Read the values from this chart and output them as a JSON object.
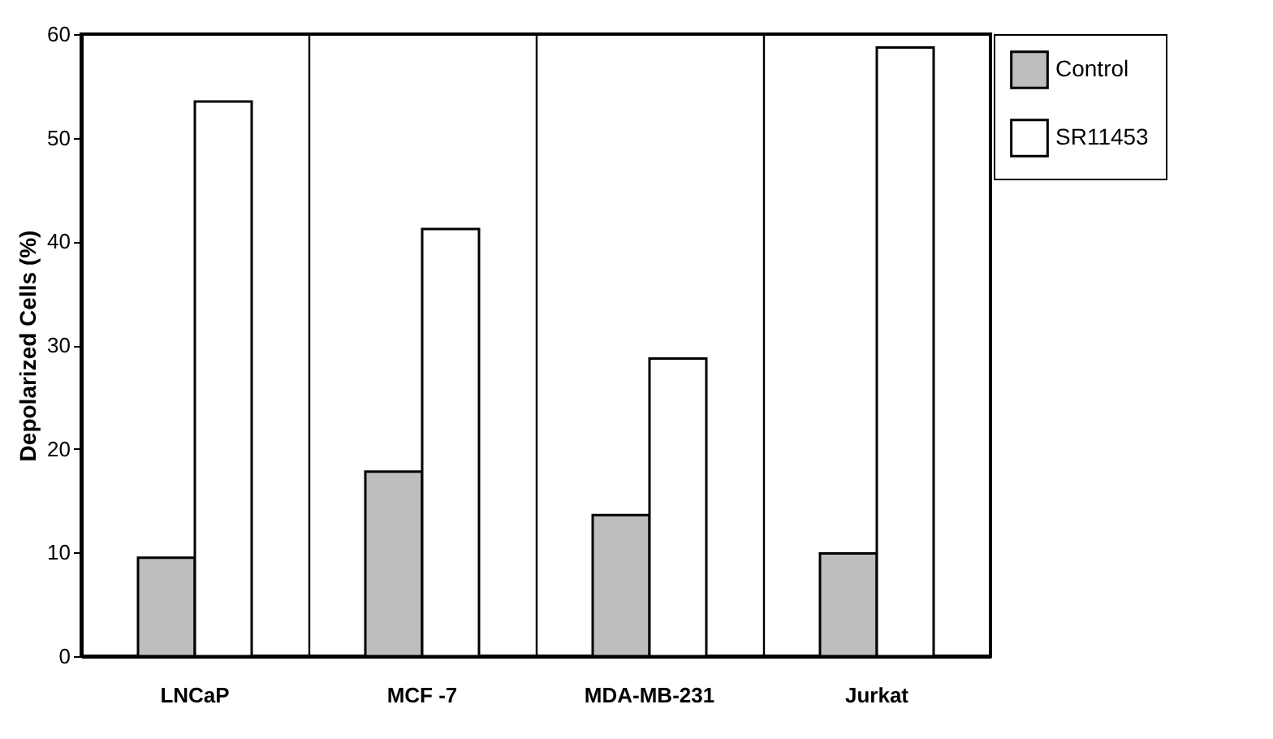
{
  "chart_data": {
    "type": "bar",
    "ylabel": "Depolarized Cells (%)",
    "categories": [
      "LNCaP",
      "MCF -7",
      "MDA-MB-231",
      "Jurkat"
    ],
    "series": [
      {
        "name": "Control",
        "color": "#bdbdbd",
        "values": [
          9.5,
          17.8,
          13.6,
          9.9
        ]
      },
      {
        "name": "SR11453",
        "color": "#ffffff",
        "values": [
          53.5,
          41.2,
          28.7,
          58.7
        ]
      }
    ],
    "ylim": [
      0,
      60
    ],
    "yticks": [
      0,
      10,
      20,
      30,
      40,
      50,
      60
    ],
    "grid": "x",
    "legend": "top right"
  }
}
